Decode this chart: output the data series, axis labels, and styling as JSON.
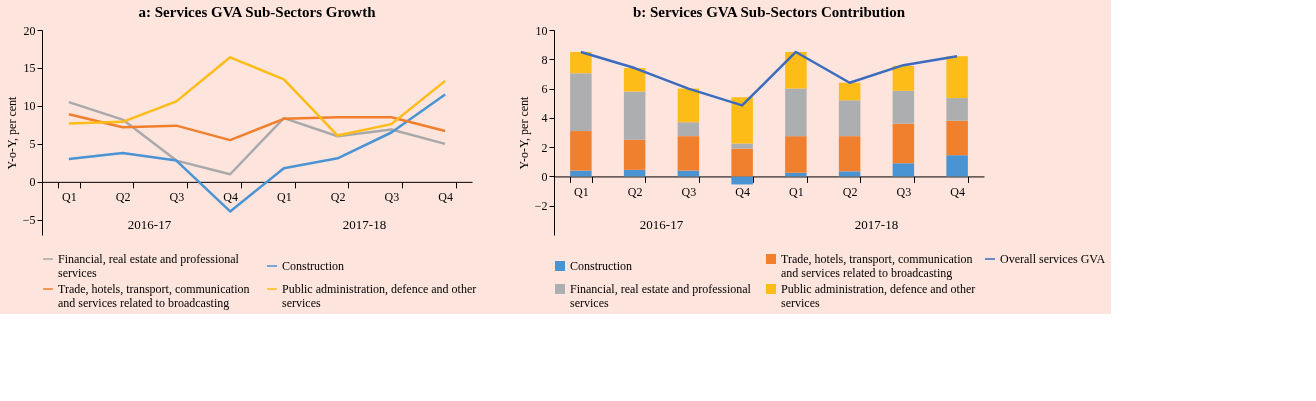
{
  "chart_data": [
    {
      "type": "line",
      "title": "a: Services GVA Sub-Sectors Growth",
      "ylabel": "Y-o-Y, per cent",
      "categories": [
        "Q1",
        "Q2",
        "Q3",
        "Q4",
        "Q1",
        "Q2",
        "Q3",
        "Q4"
      ],
      "series": [
        {
          "name": "Financial, real estate and professional services",
          "color": "#a9a9ab",
          "values": [
            10.5,
            8.2,
            2.8,
            1.0,
            8.4,
            6.0,
            6.9,
            5.0
          ]
        },
        {
          "name": "Construction",
          "color": "#4a94d4",
          "values": [
            3.0,
            3.8,
            2.8,
            -3.9,
            1.8,
            3.1,
            6.5,
            11.5
          ]
        },
        {
          "name": "Trade, hotels, transport, communication and services related to broadcasting",
          "color": "#f07f2e",
          "values": [
            8.9,
            7.2,
            7.4,
            5.5,
            8.3,
            8.5,
            8.5,
            6.7
          ]
        },
        {
          "name": "Public administration, defence and other services",
          "color": "#fdbc17",
          "values": [
            7.7,
            7.9,
            10.6,
            16.4,
            13.5,
            6.1,
            7.6,
            13.3
          ]
        }
      ],
      "ylim": [
        -7,
        20
      ],
      "yticks": [
        -5,
        0,
        5,
        10,
        15,
        20
      ],
      "grid": false,
      "legend": "bottom",
      "marker": "none",
      "line_style": "solid",
      "annotations": [
        "2016-17",
        "2017-18"
      ]
    },
    {
      "type": "bar",
      "stacked": true,
      "title": "b: Services GVA Sub-Sectors Contribution",
      "ylabel": "Y-o-Y, per cent",
      "categories": [
        "Q1",
        "Q2",
        "Q3",
        "Q4",
        "Q1",
        "Q2",
        "Q3",
        "Q4"
      ],
      "series": [
        {
          "name": "Construction",
          "color": "#4a94d4",
          "values": [
            0.4,
            0.45,
            0.4,
            -0.55,
            0.25,
            0.35,
            0.9,
            1.45
          ]
        },
        {
          "name": "Trade, hotels, transport, communication and services related to broadcasting",
          "color": "#f07f2e",
          "values": [
            2.7,
            2.05,
            2.35,
            1.9,
            2.5,
            2.4,
            2.7,
            2.35
          ]
        },
        {
          "name": "Financial, real estate and professional services",
          "color": "#adaeb0",
          "values": [
            3.95,
            3.3,
            0.95,
            0.35,
            3.25,
            2.45,
            2.25,
            1.55
          ]
        },
        {
          "name": "Public administration, defence and other services",
          "color": "#fdbc17",
          "values": [
            1.45,
            1.6,
            2.3,
            3.15,
            2.5,
            1.2,
            1.7,
            2.85
          ]
        },
        {
          "name": "Overall services GVA",
          "type": "line",
          "color": "#3a6bbf",
          "values": [
            8.5,
            7.4,
            6.0,
            4.85,
            8.5,
            6.4,
            7.6,
            8.2
          ]
        }
      ],
      "ylim": [
        -4,
        10
      ],
      "yticks": [
        -2,
        0,
        2,
        4,
        6,
        8,
        10
      ],
      "grid": false,
      "legend": "bottom",
      "annotations": [
        "2016-17",
        "2017-18"
      ]
    }
  ]
}
